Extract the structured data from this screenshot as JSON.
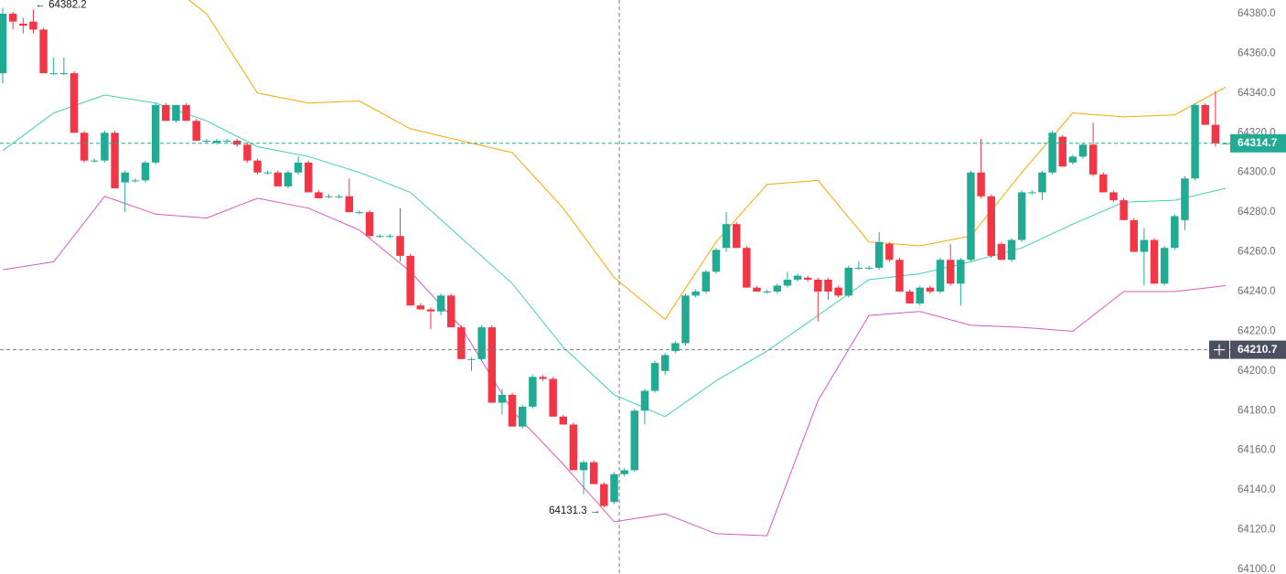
{
  "chart_data": {
    "type": "candlestick",
    "ylim": [
      64097.7,
      64386.9
    ],
    "yticks": [
      {
        "value": 64100,
        "label": "64100.0"
      },
      {
        "value": 64120,
        "label": "64120.0"
      },
      {
        "value": 64140,
        "label": "64140.0"
      },
      {
        "value": 64160,
        "label": "64160.0"
      },
      {
        "value": 64180,
        "label": "64180.0"
      },
      {
        "value": 64200,
        "label": "64200.0"
      },
      {
        "value": 64220,
        "label": "64220.0"
      },
      {
        "value": 64240,
        "label": "64240.0"
      },
      {
        "value": 64260,
        "label": "64260.0"
      },
      {
        "value": 64280,
        "label": "64280.0"
      },
      {
        "value": 64300,
        "label": "64300.0"
      },
      {
        "value": 64320,
        "label": "64320.0"
      },
      {
        "value": 64340,
        "label": "64340.0"
      },
      {
        "value": 64360,
        "label": "64360.0"
      },
      {
        "value": 64380,
        "label": "64380.0"
      }
    ],
    "up_color": "#22ab94",
    "down_color": "#f23645",
    "open": [
      64350,
      64380,
      64375,
      64376,
      64372,
      64350,
      64350,
      64350,
      64320,
      64306,
      64306,
      64320,
      64295,
      64296,
      64296,
      64305,
      64334,
      64326,
      64334,
      64326,
      64316,
      64315,
      64316,
      64316,
      64314,
      64306,
      64300,
      64300,
      64293,
      64300,
      64305,
      64290,
      64288,
      64288,
      64288,
      64280,
      64280,
      64268,
      64268,
      64268,
      64258,
      64233,
      64231,
      64230,
      64238,
      64222,
      64206,
      64206,
      64222,
      64184,
      64188,
      64172,
      64182,
      64197,
      64196,
      64177,
      64173,
      64150,
      64154,
      64143,
      64134,
      64148,
      64150,
      64180,
      64190,
      64200,
      64210,
      64214,
      64238,
      64240,
      64250,
      64262,
      64274,
      64262,
      64242,
      64240,
      64240,
      64243,
      64246,
      64247,
      64246,
      64246,
      64242,
      64238,
      64252,
      64252,
      64252,
      64264,
      64256,
      64240,
      64234,
      64242,
      64240,
      64256,
      64244,
      64256,
      64300,
      64288,
      64264,
      64256,
      64266,
      64290,
      64290,
      64300,
      64318,
      64305,
      64308,
      64314,
      64299,
      64290,
      64286,
      64276,
      64260,
      64266,
      64244,
      64262,
      64276,
      64297,
      64334,
      64324,
      64314.7
    ],
    "high": [
      64383,
      64381,
      64378,
      64382.2,
      64373,
      64358,
      64358,
      64351,
      64321,
      64307,
      64321,
      64321,
      64301,
      64297,
      64306,
      64335,
      64335,
      64334,
      64335,
      64327,
      64317,
      64317,
      64317,
      64317,
      64315,
      64307,
      64301,
      64301,
      64301,
      64308,
      64306,
      64291,
      64289,
      64289,
      64297,
      64281,
      64281,
      64269,
      64269,
      64282,
      64259,
      64234,
      64232,
      64239,
      64239,
      64223,
      64207,
      64223,
      64223,
      64191,
      64189,
      64183,
      64198,
      64198,
      64197,
      64178,
      64174,
      64155,
      64155,
      64144,
      64149,
      64151,
      64181,
      64191,
      64205,
      64209,
      64215,
      64239,
      64241,
      64251,
      64262,
      64280,
      64275,
      64263,
      64243,
      64241,
      64244,
      64250,
      64249,
      64248,
      64247,
      64247,
      64243,
      64253,
      64255,
      64253,
      64270,
      64265,
      64257,
      64241,
      64243,
      64243,
      64257,
      64264,
      64257,
      64301,
      64317,
      64289,
      64265,
      64267,
      64291,
      64291,
      64301,
      64321,
      64319,
      64309,
      64315,
      64325,
      64300,
      64291,
      64287,
      64277,
      64272,
      64267,
      64263,
      64279,
      64298,
      64335,
      64335,
      64341,
      64315
    ],
    "low": [
      64345,
      64372,
      64370,
      64370,
      64350,
      64349,
      64349,
      64320,
      64305,
      64305,
      64305,
      64292,
      64280,
      64295,
      64295,
      64304,
      64326,
      64325,
      64326,
      64316,
      64315,
      64314,
      64315,
      64313,
      64305,
      64299,
      64299,
      64293,
      64292,
      64299,
      64290,
      64287,
      64287,
      64287,
      64280,
      64279,
      64267,
      64267,
      64267,
      64255,
      64233,
      64231,
      64221,
      64228,
      64222,
      64206,
      64200,
      64205,
      64184,
      64178,
      64172,
      64171,
      64181,
      64195,
      64177,
      64173,
      64150,
      64138,
      64143,
      64131.3,
      64133,
      64147,
      64149,
      64173,
      64189,
      64198,
      64209,
      64213,
      64237,
      64239,
      64249,
      64260,
      64262,
      64242,
      64240,
      64239,
      64239,
      64242,
      64245,
      64245,
      64225,
      64236,
      64237,
      64237,
      64251,
      64251,
      64251,
      64255,
      64240,
      64234,
      64233,
      64239,
      64239,
      64243,
      64233,
      64255,
      64287,
      64257,
      64256,
      64255,
      64265,
      64289,
      64286,
      64299,
      64303,
      64304,
      64307,
      64298,
      64290,
      64285,
      64276,
      64260,
      64243,
      64244,
      64243,
      64261,
      64271,
      64296,
      64324,
      64313,
      64314
    ],
    "close": [
      64380,
      64376,
      64374,
      64372,
      64350,
      64350,
      64350,
      64320,
      64306,
      64306,
      64320,
      64292,
      64300,
      64296,
      64305,
      64334,
      64326,
      64334,
      64326,
      64316,
      64316,
      64316,
      64316,
      64314,
      64306,
      64300,
      64300,
      64293,
      64300,
      64305,
      64290,
      64287,
      64288,
      64288,
      64280,
      64280,
      64268,
      64268,
      64268,
      64258,
      64233,
      64231,
      64230,
      64238,
      64222,
      64206,
      64206,
      64222,
      64184,
      64188,
      64172,
      64182,
      64197,
      64196,
      64177,
      64173,
      64150,
      64154,
      64143,
      64132,
      64148,
      64150,
      64180,
      64190,
      64204,
      64208,
      64214,
      64238,
      64240,
      64250,
      64261,
      64274,
      64262,
      64242,
      64240,
      64240,
      64243,
      64246,
      64248,
      64246,
      64240,
      64240,
      64238,
      64252,
      64252,
      64252,
      64265,
      64256,
      64240,
      64234,
      64242,
      64240,
      64256,
      64244,
      64256,
      64300,
      64288,
      64258,
      64256,
      64266,
      64290,
      64290,
      64300,
      64320,
      64303,
      64308,
      64314,
      64299,
      64290,
      64286,
      64276,
      64260,
      64266,
      64244,
      64262,
      64278,
      64297,
      64334,
      64324,
      64314.7,
      64314.7
    ],
    "bands": {
      "x": [
        0,
        5,
        10,
        15,
        20,
        25,
        30,
        35,
        40,
        45,
        50,
        55,
        60,
        65,
        70,
        75,
        80,
        85,
        90,
        95,
        100,
        105,
        110,
        115,
        120
      ],
      "series": [
        {
          "color": "#f7a600",
          "values": [
            64440,
            64430,
            64415,
            64400,
            64380,
            64340,
            64335,
            64336,
            64322,
            64316,
            64310,
            64282,
            64247,
            64226,
            64265,
            64294,
            64296,
            64265,
            64263,
            64268,
            64300,
            64330,
            64328,
            64329,
            64343
          ]
        },
        {
          "color": "#3fcfb4",
          "values": [
            64311,
            64330,
            64339,
            64335,
            64326,
            64313,
            64308,
            64300,
            64290,
            64267,
            64244,
            64212,
            64188,
            64177,
            64195,
            64210,
            64228,
            64246,
            64249,
            64255,
            64262,
            64274,
            64285,
            64286,
            64292
          ]
        },
        {
          "color": "#d957c3",
          "values": [
            64251,
            64255,
            64288,
            64279,
            64277,
            64287,
            64282,
            64271,
            64250,
            64222,
            64180,
            64153,
            64124,
            64128,
            64118,
            64117,
            64185,
            64228,
            64230,
            64223,
            64222,
            64220,
            64240,
            64240,
            64243
          ]
        }
      ]
    },
    "annotations": [
      {
        "index": 3,
        "value": 64382.2,
        "label": "← 64382.2"
      },
      {
        "index": 59,
        "value": 64131.3,
        "label": "64131.3 →"
      }
    ],
    "last_price": {
      "value": 64314.7,
      "label": "64314.7",
      "color": "#22ab94"
    },
    "crosshair": {
      "index": 60.5,
      "value": 64210.7,
      "label": "64210.7",
      "color": "#4a5060"
    }
  }
}
